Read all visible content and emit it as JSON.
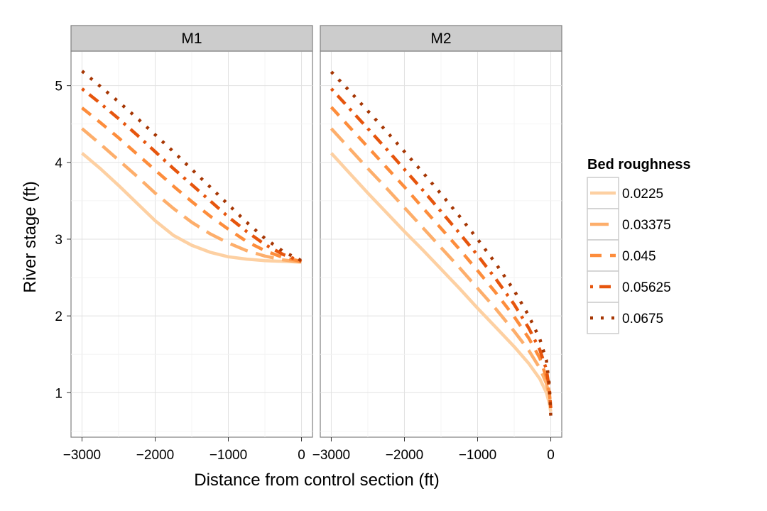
{
  "chart_data": {
    "type": "line",
    "xlabel": "Distance from control section  (ft)",
    "ylabel": "River stage  (ft)",
    "xlim": [
      -3150,
      150
    ],
    "ylim": [
      0.42,
      5.45
    ],
    "x_ticks": [
      -3000,
      -2000,
      -1000,
      0
    ],
    "x_tick_labels": [
      "−3000",
      "−2000",
      "−1000",
      "0"
    ],
    "y_ticks": [
      1,
      2,
      3,
      4,
      5
    ],
    "y_tick_labels": [
      "1",
      "2",
      "3",
      "4",
      "5"
    ],
    "grid": true,
    "legend": {
      "title": "Bed roughness",
      "position": "right",
      "entries": [
        "0.0225",
        "0.03375",
        "0.045",
        "0.05625",
        "0.0675"
      ]
    },
    "colors": [
      "#fdd0a2",
      "#fdae6b",
      "#fd8d3c",
      "#e6550d",
      "#a63603"
    ],
    "line_styles": [
      "solid",
      "longdash",
      "dashed",
      "dotdash",
      "dotted"
    ],
    "panels": [
      {
        "label": "M1",
        "series": [
          {
            "name": "0.0225",
            "x": [
              -3000,
              -2750,
              -2500,
              -2250,
              -2000,
              -1750,
              -1500,
              -1250,
              -1000,
              -750,
              -500,
              -250,
              0
            ],
            "y": [
              4.12,
              3.92,
              3.7,
              3.47,
              3.24,
              3.05,
              2.92,
              2.83,
              2.77,
              2.74,
              2.72,
              2.71,
              2.7
            ]
          },
          {
            "name": "0.03375",
            "x": [
              -3000,
              -2750,
              -2500,
              -2250,
              -2000,
              -1750,
              -1500,
              -1250,
              -1000,
              -750,
              -500,
              -250,
              0
            ],
            "y": [
              4.44,
              4.24,
              4.03,
              3.82,
              3.6,
              3.4,
              3.22,
              3.07,
              2.95,
              2.85,
              2.78,
              2.73,
              2.7
            ]
          },
          {
            "name": "0.045",
            "x": [
              -3000,
              -2750,
              -2500,
              -2250,
              -2000,
              -1750,
              -1500,
              -1250,
              -1000,
              -750,
              -500,
              -250,
              0
            ],
            "y": [
              4.71,
              4.52,
              4.32,
              4.11,
              3.9,
              3.69,
              3.49,
              3.3,
              3.13,
              2.97,
              2.85,
              2.76,
              2.71
            ]
          },
          {
            "name": "0.05625",
            "x": [
              -3000,
              -2750,
              -2500,
              -2250,
              -2000,
              -1750,
              -1500,
              -1250,
              -1000,
              -750,
              -500,
              -250,
              0
            ],
            "y": [
              4.96,
              4.77,
              4.57,
              4.36,
              4.14,
              3.92,
              3.71,
              3.5,
              3.29,
              3.1,
              2.93,
              2.8,
              2.71
            ]
          },
          {
            "name": "0.0675",
            "x": [
              -3000,
              -2750,
              -2500,
              -2250,
              -2000,
              -1750,
              -1500,
              -1250,
              -1000,
              -750,
              -500,
              -250,
              0
            ],
            "y": [
              5.19,
              4.99,
              4.79,
              4.58,
              4.36,
              4.14,
              3.91,
              3.68,
              3.45,
              3.22,
              3.01,
              2.84,
              2.72
            ]
          }
        ]
      },
      {
        "label": "M2",
        "series": [
          {
            "name": "0.0225",
            "x": [
              -3000,
              -2750,
              -2500,
              -2250,
              -2000,
              -1750,
              -1500,
              -1250,
              -1000,
              -750,
              -500,
              -300,
              -150,
              -60,
              -20,
              0
            ],
            "y": [
              4.12,
              3.86,
              3.6,
              3.35,
              3.1,
              2.86,
              2.61,
              2.36,
              2.1,
              1.85,
              1.6,
              1.38,
              1.18,
              1.0,
              0.86,
              0.75
            ]
          },
          {
            "name": "0.03375",
            "x": [
              -3000,
              -2750,
              -2500,
              -2250,
              -2000,
              -1750,
              -1500,
              -1250,
              -1000,
              -750,
              -500,
              -300,
              -150,
              -60,
              -20,
              0
            ],
            "y": [
              4.44,
              4.18,
              3.92,
              3.67,
              3.41,
              3.15,
              2.89,
              2.63,
              2.36,
              2.09,
              1.8,
              1.55,
              1.32,
              1.12,
              0.95,
              0.8
            ]
          },
          {
            "name": "0.045",
            "x": [
              -3000,
              -2750,
              -2500,
              -2250,
              -2000,
              -1750,
              -1500,
              -1250,
              -1000,
              -750,
              -500,
              -300,
              -150,
              -60,
              -20,
              0
            ],
            "y": [
              4.72,
              4.46,
              4.2,
              3.94,
              3.68,
              3.41,
              3.14,
              2.87,
              2.59,
              2.3,
              1.99,
              1.71,
              1.45,
              1.2,
              1.0,
              0.82
            ]
          },
          {
            "name": "0.05625",
            "x": [
              -3000,
              -2750,
              -2500,
              -2250,
              -2000,
              -1750,
              -1500,
              -1250,
              -1000,
              -750,
              -500,
              -300,
              -150,
              -60,
              -20,
              0
            ],
            "y": [
              4.96,
              4.7,
              4.44,
              4.18,
              3.91,
              3.64,
              3.36,
              3.08,
              2.79,
              2.48,
              2.15,
              1.84,
              1.56,
              1.3,
              1.05,
              0.8
            ]
          },
          {
            "name": "0.0675",
            "x": [
              -3000,
              -2750,
              -2500,
              -2250,
              -2000,
              -1750,
              -1500,
              -1250,
              -1000,
              -750,
              -500,
              -300,
              -150,
              -60,
              -20,
              0
            ],
            "y": [
              5.18,
              4.93,
              4.67,
              4.41,
              4.14,
              3.87,
              3.59,
              3.3,
              3.0,
              2.68,
              2.33,
              2.0,
              1.7,
              1.42,
              1.1,
              0.7
            ]
          }
        ]
      }
    ]
  }
}
